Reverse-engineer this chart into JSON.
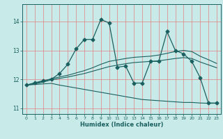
{
  "title": "",
  "xlabel": "Humidex (Indice chaleur)",
  "xlim": [
    -0.5,
    23.5
  ],
  "ylim": [
    10.8,
    14.6
  ],
  "yticks": [
    11,
    12,
    13,
    14
  ],
  "xticks": [
    0,
    1,
    2,
    3,
    4,
    5,
    6,
    7,
    8,
    9,
    10,
    11,
    12,
    13,
    14,
    15,
    16,
    17,
    18,
    19,
    20,
    21,
    22,
    23
  ],
  "background_color": "#c8eae8",
  "grid_color": "#e08080",
  "line_color": "#1a6060",
  "lines": [
    {
      "x": [
        0,
        1,
        2,
        3,
        4,
        5,
        6,
        7,
        8,
        9,
        10,
        11,
        12,
        13,
        14,
        15,
        16,
        17,
        18,
        19,
        20,
        21,
        22,
        23
      ],
      "y": [
        11.8,
        11.82,
        11.84,
        11.86,
        11.8,
        11.75,
        11.7,
        11.65,
        11.6,
        11.55,
        11.5,
        11.45,
        11.4,
        11.35,
        11.3,
        11.28,
        11.26,
        11.24,
        11.22,
        11.2,
        11.2,
        11.18,
        11.17,
        11.17
      ],
      "style": "-",
      "marker": null,
      "linewidth": 0.8
    },
    {
      "x": [
        0,
        1,
        2,
        3,
        4,
        5,
        6,
        7,
        8,
        9,
        10,
        11,
        12,
        13,
        14,
        15,
        16,
        17,
        18,
        19,
        20,
        21,
        22,
        23
      ],
      "y": [
        11.8,
        11.84,
        11.9,
        11.98,
        12.03,
        12.08,
        12.14,
        12.2,
        12.28,
        12.36,
        12.44,
        12.49,
        12.54,
        12.58,
        12.6,
        12.62,
        12.64,
        12.68,
        12.72,
        12.75,
        12.72,
        12.6,
        12.5,
        12.4
      ],
      "style": "-",
      "marker": null,
      "linewidth": 0.8
    },
    {
      "x": [
        0,
        1,
        2,
        3,
        4,
        5,
        6,
        7,
        8,
        9,
        10,
        11,
        12,
        13,
        14,
        15,
        16,
        17,
        18,
        19,
        20,
        21,
        22,
        23
      ],
      "y": [
        11.8,
        11.86,
        11.93,
        12.02,
        12.08,
        12.14,
        12.22,
        12.3,
        12.4,
        12.52,
        12.62,
        12.67,
        12.72,
        12.76,
        12.78,
        12.8,
        12.84,
        12.9,
        12.96,
        13.0,
        12.96,
        12.8,
        12.68,
        12.55
      ],
      "style": "-",
      "marker": null,
      "linewidth": 0.8
    },
    {
      "x": [
        0,
        1,
        2,
        3,
        4,
        5,
        6,
        7,
        8,
        9,
        10,
        11,
        12,
        13,
        14,
        15,
        16,
        17,
        18,
        19,
        20,
        21,
        22,
        23
      ],
      "y": [
        11.8,
        11.88,
        11.95,
        12.0,
        12.2,
        12.52,
        13.05,
        13.38,
        13.38,
        14.07,
        13.95,
        12.42,
        12.46,
        11.87,
        11.87,
        12.62,
        12.62,
        13.65,
        13.0,
        12.88,
        12.62,
        12.06,
        11.18,
        11.18
      ],
      "style": "-",
      "marker": "D",
      "markersize": 2.5,
      "linewidth": 0.9
    }
  ]
}
